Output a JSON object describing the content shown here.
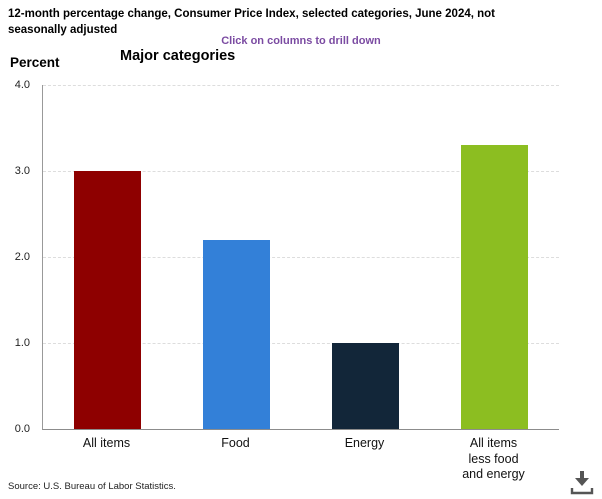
{
  "header": {
    "title_line1": "12-month percentage change, Consumer Price Index, selected categories, June 2024, not",
    "title_line2": "seasonally adjusted",
    "drilldown_hint": "Click on columns to drill down"
  },
  "chart_data": {
    "type": "bar",
    "title": "Major categories",
    "ylabel": "Percent",
    "xlabel": "",
    "categories": [
      "All items",
      "Food",
      "Energy",
      "All items\nless food\nand energy"
    ],
    "values": [
      3.0,
      2.2,
      1.0,
      3.3
    ],
    "bar_colors": [
      "#8e0000",
      "#3380d8",
      "#122639",
      "#8cbe21"
    ],
    "ylim": [
      0,
      4
    ],
    "ytick_labels": [
      "4.0",
      "3.0",
      "2.0",
      "1.0",
      "0.0"
    ],
    "grid": "horizontal dashed",
    "legend": "none"
  },
  "footer": {
    "source": "Source: U.S. Bureau of Labor Statistics."
  },
  "icons": {
    "download": "download-icon"
  },
  "colors": {
    "hint_purple": "#7b4ba2",
    "axis_line": "#999999",
    "gridline": "#dddddd",
    "icon_gray": "#555555"
  }
}
